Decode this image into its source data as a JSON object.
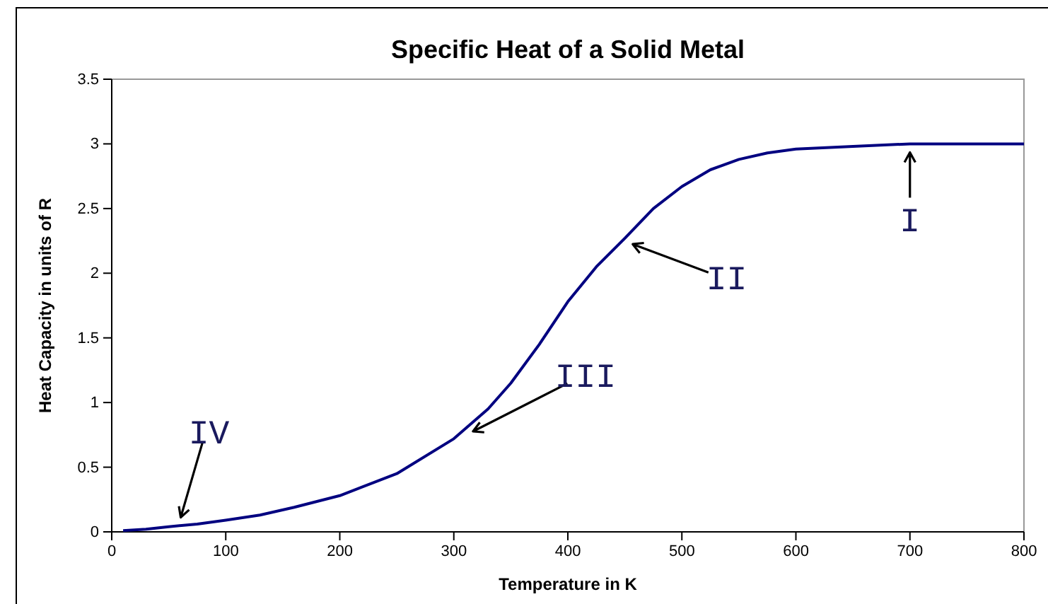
{
  "chart_data": {
    "type": "line",
    "title": "Specific Heat of a Solid Metal",
    "xlabel": "Temperature in K",
    "ylabel": "Heat Capacity in units of R",
    "x": [
      10,
      30,
      50,
      75,
      100,
      130,
      160,
      200,
      250,
      300,
      330,
      350,
      375,
      400,
      425,
      450,
      475,
      500,
      525,
      550,
      575,
      600,
      650,
      700,
      750,
      800
    ],
    "series": [
      {
        "color": "#000080",
        "values": [
          0.01,
          0.02,
          0.04,
          0.06,
          0.09,
          0.13,
          0.19,
          0.28,
          0.45,
          0.72,
          0.95,
          1.15,
          1.45,
          1.78,
          2.05,
          2.27,
          2.5,
          2.67,
          2.8,
          2.88,
          2.93,
          2.96,
          2.98,
          3,
          3,
          3
        ]
      }
    ],
    "xlim": [
      0,
      800
    ],
    "xticks": [
      0,
      100,
      200,
      300,
      400,
      500,
      600,
      700,
      800
    ],
    "ylim": [
      0,
      3.5
    ],
    "yticks": [
      0,
      0.5,
      1,
      1.5,
      2,
      2.5,
      3,
      3.5
    ],
    "grid": false,
    "marker": "none",
    "line_style": "solid",
    "annotations": [
      {
        "text": "I",
        "x": 700,
        "y": 3
      },
      {
        "text": "II",
        "x": 450,
        "y": 2.25
      },
      {
        "text": "III",
        "x": 310,
        "y": 0.75
      },
      {
        "text": "IV",
        "x": 58,
        "y": 0.05
      }
    ]
  }
}
